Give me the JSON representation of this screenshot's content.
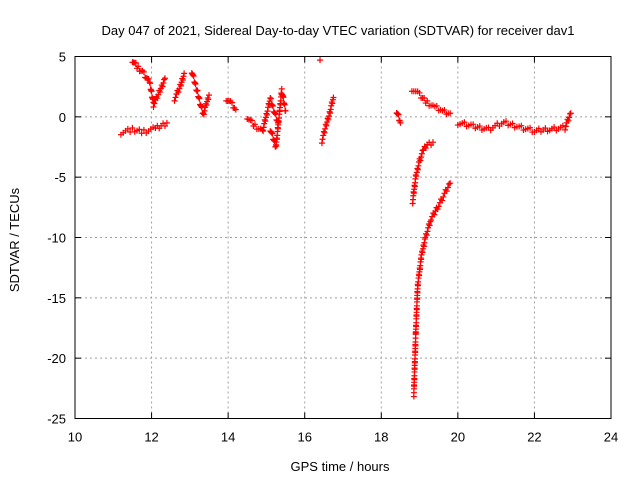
{
  "chart_data": {
    "type": "scatter",
    "title": "Day 047 of 2021, Sidereal Day-to-day VTEC variation (SDTVAR) for receiver dav1",
    "xlabel": "GPS time / hours",
    "ylabel": "SDTVAR / TECUs",
    "xlim": [
      10,
      24
    ],
    "ylim": [
      -25,
      5
    ],
    "xticks": [
      "10",
      "12",
      "14",
      "16",
      "18",
      "20",
      "22",
      "24"
    ],
    "yticks": [
      "5",
      "0",
      "-5",
      "-10",
      "-15",
      "-20",
      "-25"
    ],
    "grid": true,
    "marker": "+",
    "color": "#ff0000",
    "segments": [
      {
        "x": [
          11.2,
          11.5,
          11.8,
          12.1,
          12.4
        ],
        "y": [
          -1.3,
          -1.1,
          -1.2,
          -1.0,
          -0.5
        ]
      },
      {
        "x": [
          11.5,
          11.65,
          11.8,
          11.95,
          12.05
        ],
        "y": [
          4.7,
          4.0,
          3.6,
          2.8,
          1.2
        ]
      },
      {
        "x": [
          12.05,
          12.2,
          12.35
        ],
        "y": [
          1.0,
          2.0,
          3.2
        ]
      },
      {
        "x": [
          12.6,
          12.75,
          12.85
        ],
        "y": [
          1.5,
          2.5,
          3.6
        ]
      },
      {
        "x": [
          13.05,
          13.2,
          13.35,
          13.5
        ],
        "y": [
          3.8,
          2.0,
          0.2,
          1.8
        ]
      },
      {
        "x": [
          13.95,
          14.1,
          14.2
        ],
        "y": [
          1.5,
          1.0,
          0.6
        ]
      },
      {
        "x": [
          14.5,
          14.7,
          14.9,
          15.1,
          15.3
        ],
        "y": [
          0.0,
          -0.8,
          -1.2,
          1.5,
          -0.5
        ]
      },
      {
        "x": [
          15.1,
          15.25,
          15.4,
          15.5
        ],
        "y": [
          -1.0,
          -2.5,
          2.2,
          0.5
        ]
      },
      {
        "x": [
          16.4
        ],
        "y": [
          4.7
        ]
      },
      {
        "x": [
          16.45,
          16.55,
          16.65,
          16.75
        ],
        "y": [
          -2.0,
          -0.8,
          0.3,
          1.6
        ]
      },
      {
        "x": [
          18.4,
          18.5
        ],
        "y": [
          0.5,
          -0.5
        ]
      },
      {
        "x": [
          18.8,
          19.0,
          19.2,
          19.4,
          19.6,
          19.8
        ],
        "y": [
          2.3,
          1.8,
          1.2,
          0.8,
          0.5,
          0.3
        ]
      },
      {
        "x": [
          18.82,
          18.9,
          19.0,
          19.1,
          19.2,
          19.35
        ],
        "y": [
          -7.0,
          -5.0,
          -3.6,
          -2.8,
          -2.3,
          -2.1
        ]
      },
      {
        "x": [
          18.85,
          18.9,
          18.95,
          19.05,
          19.15,
          19.3,
          19.5,
          19.8
        ],
        "y": [
          -23.0,
          -18.0,
          -14.0,
          -11.5,
          -10.0,
          -8.5,
          -7.3,
          -5.5
        ]
      },
      {
        "x": [
          20.0,
          20.4,
          20.8,
          21.2,
          21.6,
          22.0,
          22.4,
          22.8,
          22.95
        ],
        "y": [
          -0.5,
          -0.8,
          -1.0,
          -0.5,
          -0.8,
          -1.2,
          -1.0,
          -0.9,
          0.3
        ]
      }
    ]
  }
}
